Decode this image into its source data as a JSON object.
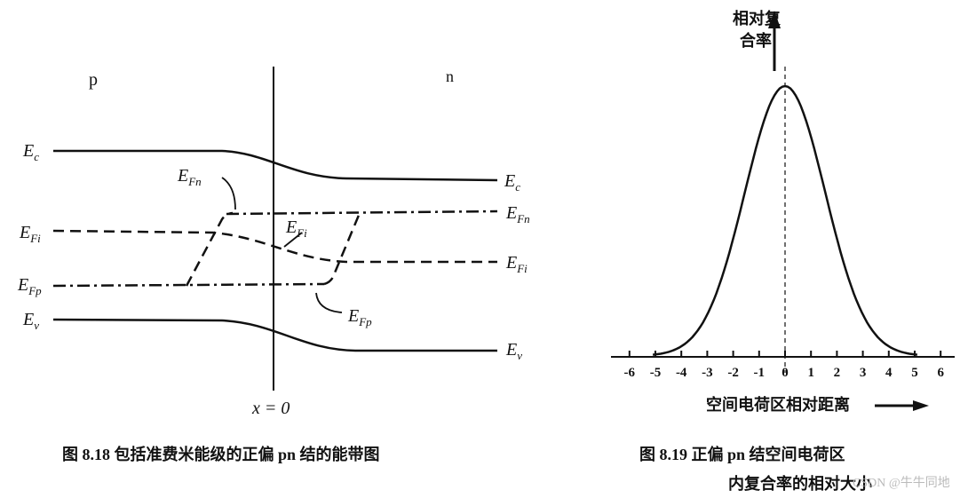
{
  "left": {
    "p_label": "p",
    "n_label": "n",
    "origin_label": "x = 0",
    "levels": {
      "Ec": {
        "main": "E",
        "sub": "c"
      },
      "EFn": {
        "main": "E",
        "sub": "Fn"
      },
      "EFi": {
        "main": "E",
        "sub": "Fi"
      },
      "EFp": {
        "main": "E",
        "sub": "Fp"
      },
      "Ev": {
        "main": "E",
        "sub": "v"
      }
    },
    "caption": "图 8.18   包括准费米能级的正偏 pn 结的能带图"
  },
  "right": {
    "y_label": [
      "相对复",
      "合率"
    ],
    "x_label": "空间电荷区相对距离",
    "x_ticks": [
      -6,
      -5,
      -4,
      -3,
      -2,
      -1,
      0,
      1,
      2,
      3,
      4,
      5,
      6
    ],
    "caption": [
      "图 8.19   正偏 pn 结空间电荷区",
      "内复合率的相对大小"
    ]
  },
  "watermark": "CSDN @牛牛同地"
}
